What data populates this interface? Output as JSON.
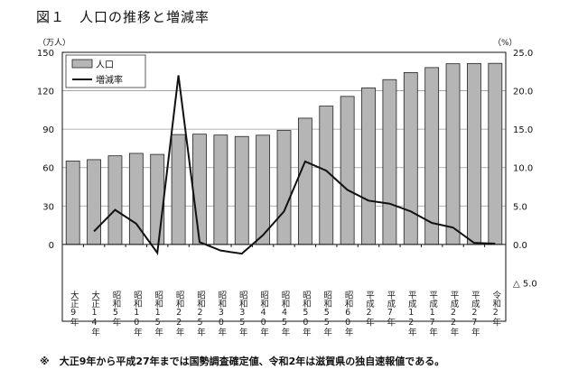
{
  "title": "図１　人口の推移と増減率",
  "footnote": "※　大正9年から平成27年までは国勢調査確定値、令和2年は滋賀県の独自速報値である。",
  "chart_data": {
    "type": "bar+line",
    "categories": [
      "大正9年",
      "大正14年",
      "昭和5年",
      "昭和10年",
      "昭和15年",
      "昭和22年",
      "昭和25年",
      "昭和30年",
      "昭和35年",
      "昭和40年",
      "昭和45年",
      "昭和50年",
      "昭和55年",
      "昭和60年",
      "平成2年",
      "平成7年",
      "平成12年",
      "平成17年",
      "平成22年",
      "平成27年",
      "令和2年"
    ],
    "series": [
      {
        "name": "人口",
        "type": "bar",
        "axis": "left",
        "color": "#b5b5b5",
        "values": [
          65.1,
          66.2,
          69.2,
          71.1,
          70.3,
          85.8,
          86.1,
          85.4,
          84.3,
          85.3,
          89.0,
          98.6,
          108.0,
          115.6,
          122.2,
          128.7,
          134.2,
          138.1,
          141.1,
          141.3,
          141.4
        ]
      },
      {
        "name": "増減率",
        "type": "line",
        "axis": "right",
        "color": "#111111",
        "values": [
          null,
          1.7,
          4.5,
          2.7,
          -1.1,
          22.0,
          0.3,
          -0.8,
          -1.2,
          1.2,
          4.3,
          10.8,
          9.6,
          7.1,
          5.7,
          5.3,
          4.3,
          2.8,
          2.2,
          0.2,
          0.1
        ]
      }
    ],
    "left_axis": {
      "unit": "（万人）",
      "ticks": [
        "0",
        "30",
        "60",
        "90",
        "120",
        "150"
      ],
      "tick_values": [
        0,
        30,
        60,
        90,
        120,
        150
      ],
      "range": [
        -60,
        150
      ]
    },
    "right_axis": {
      "unit": "（%）",
      "ticks": [
        "△ 5.0",
        "0.0",
        "5.0",
        "10.0",
        "15.0",
        "20.0",
        "25.0"
      ],
      "tick_values": [
        -5,
        0,
        5,
        10,
        15,
        20,
        25
      ],
      "range": [
        -10,
        25
      ]
    },
    "grid": true,
    "legend": "top-left"
  }
}
